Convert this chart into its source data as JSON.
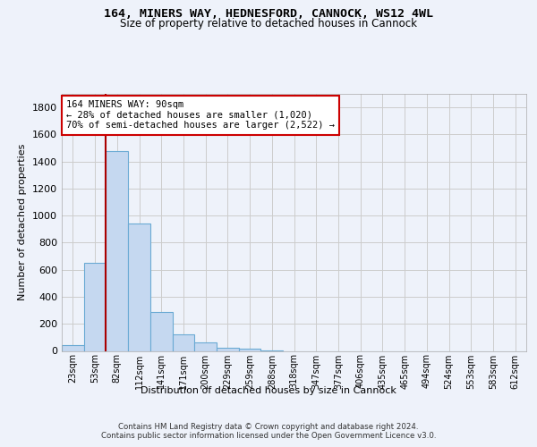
{
  "title_line1": "164, MINERS WAY, HEDNESFORD, CANNOCK, WS12 4WL",
  "title_line2": "Size of property relative to detached houses in Cannock",
  "xlabel": "Distribution of detached houses by size in Cannock",
  "ylabel": "Number of detached properties",
  "categories": [
    "23sqm",
    "53sqm",
    "82sqm",
    "112sqm",
    "141sqm",
    "171sqm",
    "200sqm",
    "229sqm",
    "259sqm",
    "288sqm",
    "318sqm",
    "347sqm",
    "377sqm",
    "406sqm",
    "435sqm",
    "465sqm",
    "494sqm",
    "524sqm",
    "553sqm",
    "583sqm",
    "612sqm"
  ],
  "values": [
    40,
    650,
    1480,
    940,
    290,
    125,
    65,
    25,
    15,
    5,
    0,
    0,
    0,
    0,
    0,
    0,
    0,
    0,
    0,
    0,
    0
  ],
  "bar_color": "#c5d8f0",
  "bar_edge_color": "#6aaad4",
  "grid_color": "#cccccc",
  "annotation_box_text": "164 MINERS WAY: 90sqm\n← 28% of detached houses are smaller (1,020)\n70% of semi-detached houses are larger (2,522) →",
  "vline_x_index": 2,
  "vline_color": "#aa0000",
  "annotation_box_color": "#ffffff",
  "annotation_box_edge_color": "#cc0000",
  "ylim": [
    0,
    1900
  ],
  "yticks": [
    0,
    200,
    400,
    600,
    800,
    1000,
    1200,
    1400,
    1600,
    1800
  ],
  "footer_text": "Contains HM Land Registry data © Crown copyright and database right 2024.\nContains public sector information licensed under the Open Government Licence v3.0.",
  "background_color": "#eef2fa",
  "plot_bg_color": "#eef2fa"
}
